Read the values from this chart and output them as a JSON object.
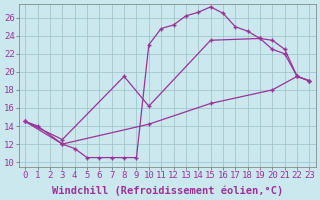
{
  "xlabel": "Windchill (Refroidissement éolien,°C)",
  "ylabel": "",
  "xlim": [
    -0.5,
    23.5
  ],
  "ylim": [
    9.5,
    27.5
  ],
  "xticks": [
    0,
    1,
    2,
    3,
    4,
    5,
    6,
    7,
    8,
    9,
    10,
    11,
    12,
    13,
    14,
    15,
    16,
    17,
    18,
    19,
    20,
    21,
    22,
    23
  ],
  "yticks": [
    10,
    12,
    14,
    16,
    18,
    20,
    22,
    24,
    26
  ],
  "bg_color": "#cce8ef",
  "grid_color": "#9bbfc8",
  "line_color": "#993399",
  "curve1_x": [
    0,
    1,
    3,
    4,
    5,
    6,
    7,
    8,
    9,
    10,
    11,
    12,
    13,
    14,
    15,
    16,
    17,
    18,
    19,
    20,
    21,
    22,
    23
  ],
  "curve1_y": [
    14.5,
    14.0,
    12.0,
    11.5,
    10.5,
    10.5,
    10.5,
    10.5,
    10.5,
    23.0,
    24.8,
    25.2,
    26.2,
    26.6,
    27.2,
    26.5,
    25.0,
    24.5,
    23.7,
    22.5,
    22.0,
    19.5,
    19.0
  ],
  "curve2_x": [
    0,
    3,
    8,
    10,
    15,
    19,
    20,
    21,
    22,
    23
  ],
  "curve2_y": [
    14.5,
    12.5,
    19.5,
    16.2,
    23.5,
    23.7,
    23.5,
    22.5,
    19.5,
    19.0
  ],
  "curve3_x": [
    0,
    3,
    10,
    15,
    20,
    22,
    23
  ],
  "curve3_y": [
    14.5,
    12.0,
    14.2,
    16.5,
    18.0,
    19.5,
    19.0
  ],
  "tick_fontsize": 6.5,
  "xlabel_fontsize": 7.5,
  "title_fontsize": 7
}
